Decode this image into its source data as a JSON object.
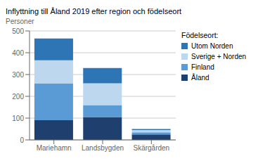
{
  "chart_data": {
    "type": "bar",
    "title": "Inflyttning till Åland 2019 efter region och födelseort",
    "ylabel": "Personer",
    "legend_title": "Födelseort:",
    "categories": [
      "Mariehamn",
      "Landsbygden",
      "Skärgården"
    ],
    "series": [
      {
        "name": "Åland",
        "color": "#1f3f6e",
        "values": [
          90,
          105,
          25
        ]
      },
      {
        "name": "Finland",
        "color": "#5b9bd5",
        "values": [
          170,
          55,
          10
        ]
      },
      {
        "name": "Sverige + Norden",
        "color": "#bdd7ee",
        "values": [
          105,
          100,
          10
        ]
      },
      {
        "name": "Utom Norden",
        "color": "#2e75b6",
        "values": [
          100,
          70,
          5
        ]
      }
    ],
    "ylim": [
      0,
      500
    ],
    "yticks": [
      0,
      100,
      200,
      300,
      400,
      500
    ],
    "stacked": true,
    "grid": true,
    "legend": "right"
  }
}
